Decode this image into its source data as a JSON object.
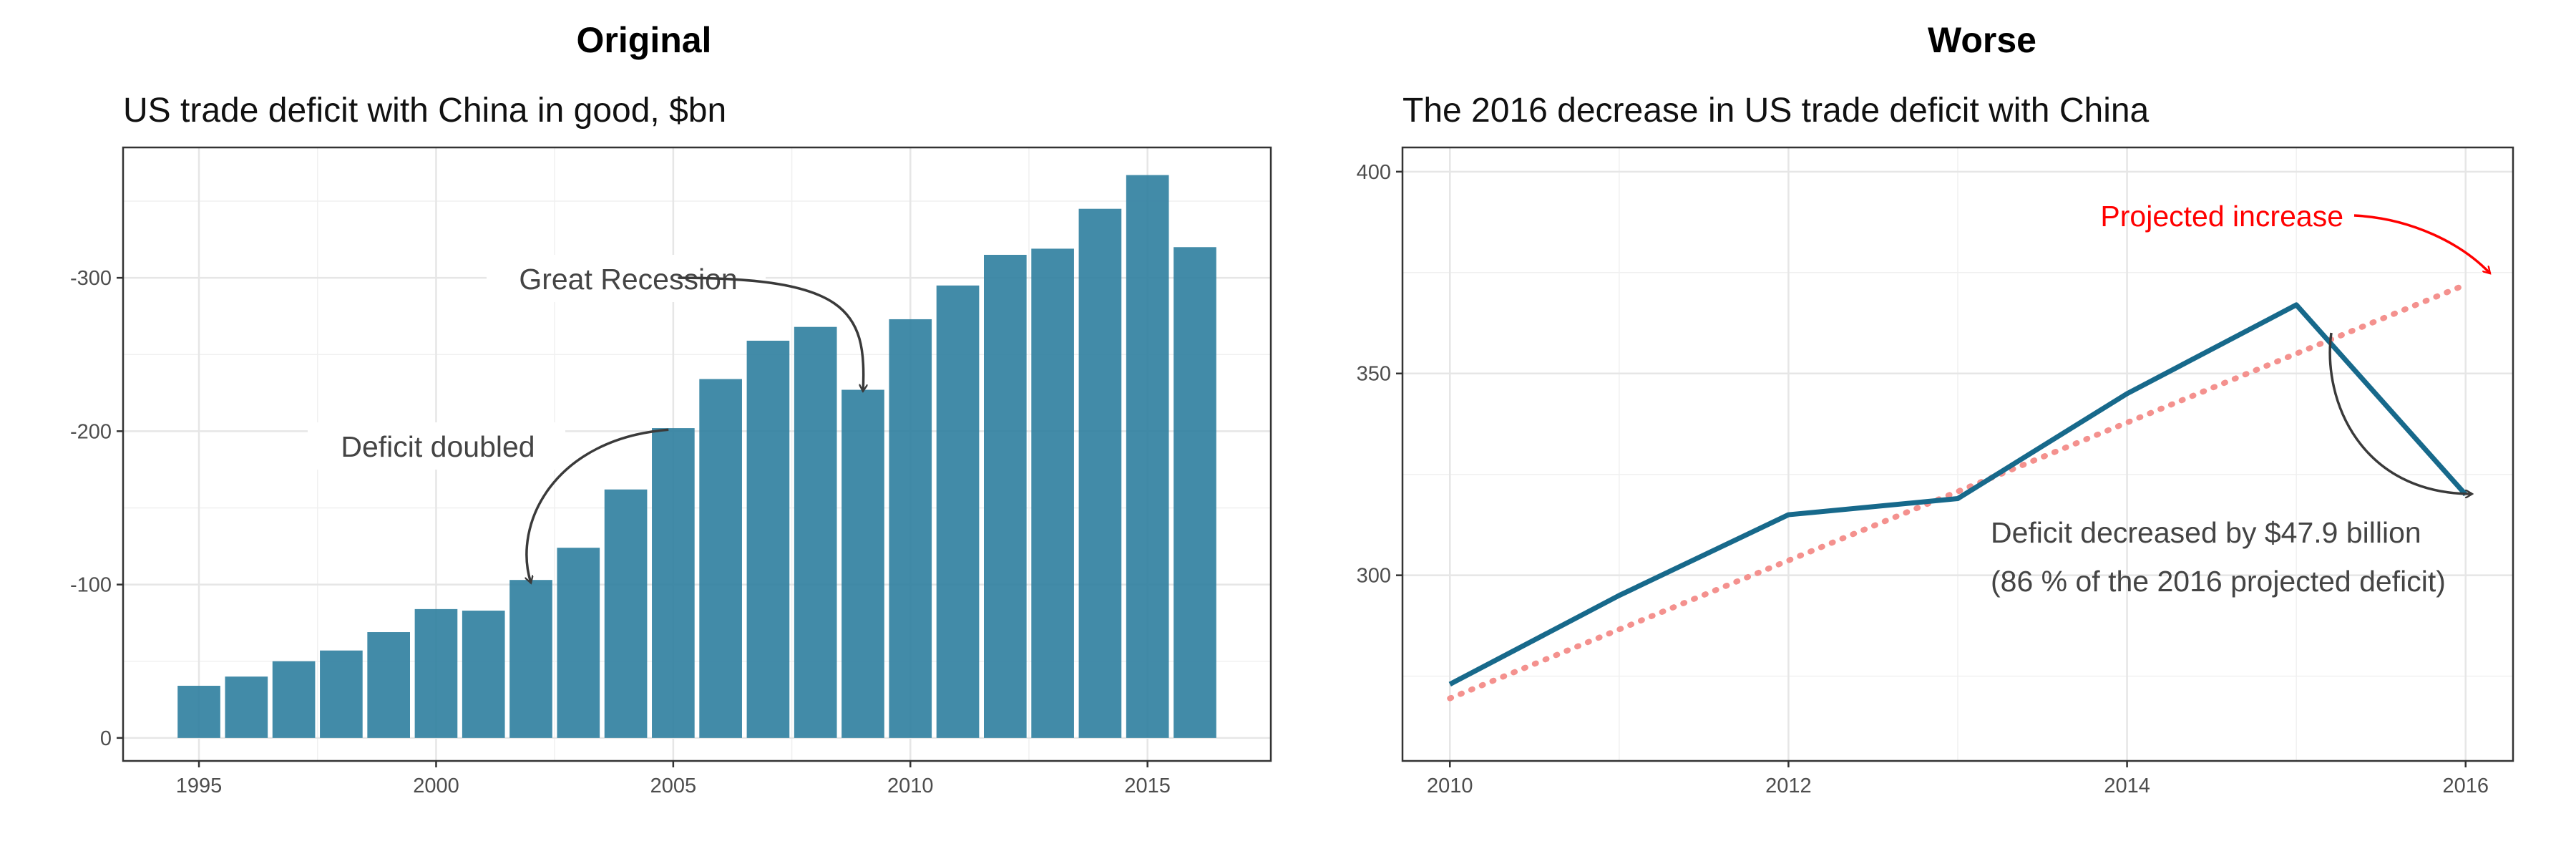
{
  "panels": [
    {
      "heading": "Original"
    },
    {
      "heading": "Worse"
    }
  ],
  "chart_data": [
    {
      "type": "bar",
      "title": "US trade deficit with China in good, $bn",
      "xlabel": "",
      "ylabel": "",
      "x": [
        1995,
        1996,
        1997,
        1998,
        1999,
        2000,
        2001,
        2002,
        2003,
        2004,
        2005,
        2006,
        2007,
        2008,
        2009,
        2010,
        2011,
        2012,
        2013,
        2014,
        2015,
        2016
      ],
      "values": [
        -34,
        -40,
        -50,
        -57,
        -69,
        -84,
        -83,
        -103,
        -124,
        -162,
        -202,
        -234,
        -259,
        -268,
        -227,
        -273,
        -295,
        -315,
        -319,
        -345,
        -367,
        -320
      ],
      "xticks": [
        1995,
        2000,
        2005,
        2010,
        2015
      ],
      "yticks": [
        0,
        -100,
        -200,
        -300
      ],
      "ytick_labels": [
        "0",
        "-100",
        "-200",
        "-300"
      ],
      "ylim": [
        15,
        -385
      ],
      "y_axis_reversed": true,
      "xlim": [
        1993.4,
        2017.6
      ],
      "grid": true,
      "bar_color": "#2e7e9f",
      "annotations": [
        {
          "text": "Great Recession",
          "from": [
            2005.1,
            -300
          ],
          "to": [
            2009,
            -226
          ]
        },
        {
          "text": "Deficit doubled",
          "from": [
            2004.9,
            -201
          ],
          "to": [
            2002,
            -101
          ]
        }
      ]
    },
    {
      "type": "line",
      "title": "The 2016 decrease in US trade deficit with China",
      "xlabel": "",
      "ylabel": "",
      "x": [
        2010,
        2011,
        2012,
        2013,
        2014,
        2015,
        2016
      ],
      "series": [
        {
          "values": [
            273,
            295,
            315,
            319,
            345,
            367,
            320
          ],
          "color": "#17698b"
        }
      ],
      "projection": {
        "x": [
          2010,
          2016
        ],
        "values": [
          269.5,
          372
        ],
        "color": "#f4918e"
      },
      "xticks": [
        2010,
        2012,
        2014,
        2016
      ],
      "yticks": [
        300,
        350,
        400
      ],
      "ylim": [
        254,
        406
      ],
      "xlim": [
        2009.72,
        2016.28
      ],
      "grid": true,
      "annotations": [
        {
          "text": "Projected increase",
          "color": "#ff0000"
        },
        {
          "lines": [
            "Deficit decreased by $47.9 billion",
            "(86 % of the 2016 projected deficit)"
          ],
          "color": "#444444"
        }
      ]
    }
  ]
}
